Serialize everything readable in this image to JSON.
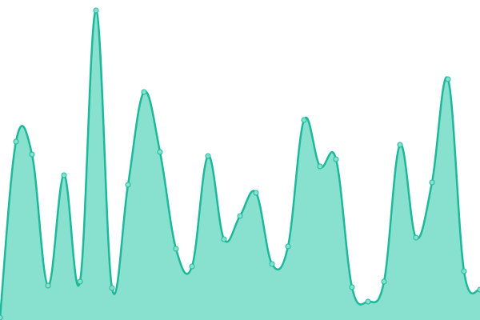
{
  "chart_data": {
    "type": "area",
    "values": [
      3,
      223,
      207,
      43,
      181,
      48,
      387,
      40,
      169,
      285,
      210,
      89,
      67,
      205,
      101,
      130,
      159,
      70,
      92,
      250,
      192,
      201,
      41,
      23,
      48,
      219,
      103,
      172,
      301,
      61,
      38
    ],
    "color": "#1db89a",
    "fill": "#88e0cf",
    "ylim": [
      0,
      400
    ]
  }
}
